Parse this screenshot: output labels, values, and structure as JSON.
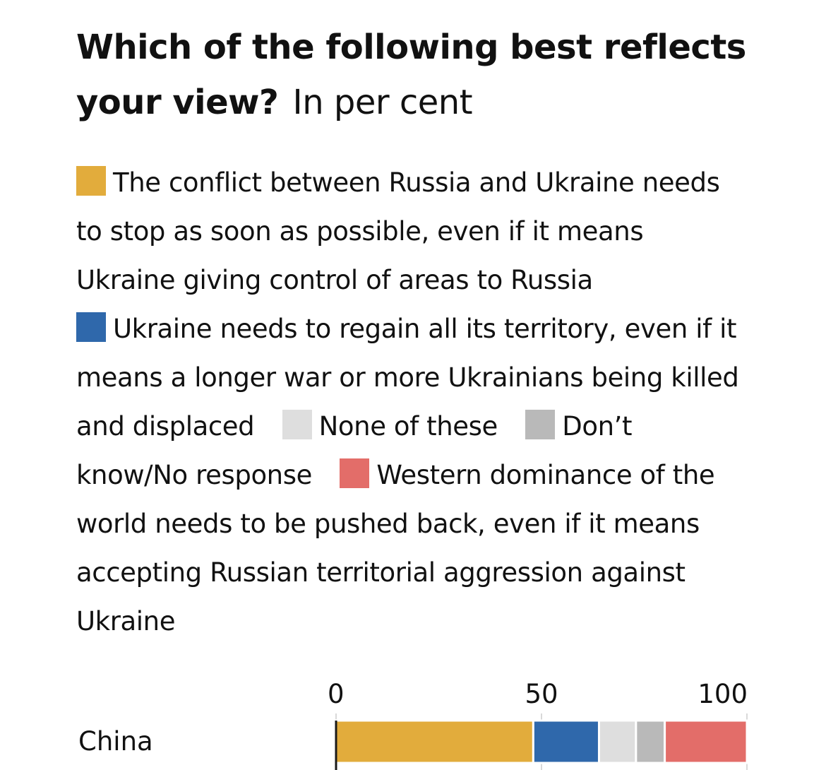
{
  "title": {
    "question": "Which of the following best reflects your view?",
    "unit": "In per cent"
  },
  "colors": {
    "stop_asap": "#e2ac3c",
    "regain_territory": "#2f68ab",
    "none": "#dedede",
    "dont_know": "#b9b9b9",
    "western_dominance": "#e36d69"
  },
  "legend": [
    {
      "key": "stop_asap",
      "label": "The conflict between Russia and Ukraine needs to stop as soon as possible, even if it means Ukraine giving control of areas to Russia"
    },
    {
      "key": "regain_territory",
      "label": "Ukraine needs to regain all its territory, even if it means a longer war or more Ukrainians being killed and displaced"
    },
    {
      "key": "none",
      "label": "None of these"
    },
    {
      "key": "dont_know",
      "label": "Don’t know/No response"
    },
    {
      "key": "western_dominance",
      "label": "Western dominance of the world needs to be pushed back, even if it means accepting Russian territorial aggression against Ukraine"
    }
  ],
  "chart_data": {
    "type": "bar",
    "orientation": "horizontal-stacked",
    "xlim": [
      0,
      100
    ],
    "xticks": [
      {
        "value": 0,
        "label": "0"
      },
      {
        "value": 50,
        "label": "50"
      },
      {
        "value": 100,
        "label": "100"
      }
    ],
    "categories": [
      "China"
    ],
    "series": [
      {
        "key": "stop_asap",
        "name": "The conflict between Russia and Ukraine needs to stop as soon as possible, even if it means Ukraine giving control of areas to Russia",
        "values": [
          48
        ]
      },
      {
        "key": "regain_territory",
        "name": "Ukraine needs to regain all its territory, even if it means a longer war or more Ukrainians being killed and displaced",
        "values": [
          16
        ]
      },
      {
        "key": "none",
        "name": "None of these",
        "values": [
          9
        ]
      },
      {
        "key": "dont_know",
        "name": "Don’t know/No response",
        "values": [
          7
        ]
      },
      {
        "key": "western_dominance",
        "name": "Western dominance of the world needs to be pushed back, even if it means accepting Russian territorial aggression against Ukraine",
        "values": [
          20
        ]
      }
    ]
  }
}
